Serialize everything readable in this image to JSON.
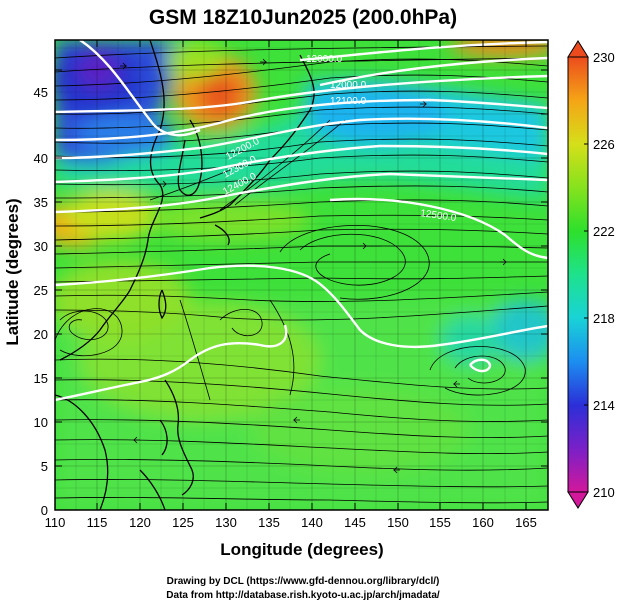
{
  "title": "GSM 18Z10Jun2025 (200.0hPa)",
  "xlabel": "Longitude (degrees)",
  "ylabel": "Latitude  (degrees)",
  "x_ticks": [
    "110",
    "115",
    "120",
    "125",
    "130",
    "135",
    "140",
    "145",
    "150",
    "155",
    "160",
    "165"
  ],
  "y_ticks": [
    "0",
    "5",
    "10",
    "15",
    "20",
    "25",
    "30",
    "35",
    "40",
    "45"
  ],
  "colorbar": {
    "ticks": [
      "230",
      "226",
      "222",
      "218",
      "214",
      "210"
    ],
    "min": 210,
    "max": 230,
    "colors": [
      "#d2189b",
      "#7a20c8",
      "#2b2fd8",
      "#1c8ef0",
      "#19d3d6",
      "#1ee28c",
      "#2ee02c",
      "#86e21d",
      "#d5df1a",
      "#f5a516",
      "#ec4c1d"
    ]
  },
  "contour_labels": [
    "12000.0",
    "12100.0",
    "12200.0",
    "12300.0",
    "12400.0",
    "12500.0"
  ],
  "credits": [
    "Drawing by DCL (https://www.gfd-dennou.org/library/dcl/)",
    "Data from http://database.rish.kyoto-u.ac.jp/arch/jmadata/"
  ]
}
